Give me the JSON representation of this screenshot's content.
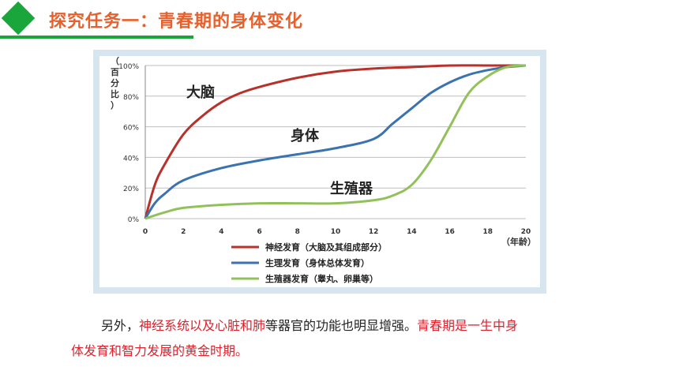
{
  "header": {
    "title": "探究任务一：青春期的身体变化"
  },
  "chart_data": {
    "type": "line",
    "ylabel": "（百分比）",
    "xlabel": "（年龄）",
    "xlim": [
      0,
      20
    ],
    "ylim": [
      0,
      100
    ],
    "x_ticks": [
      "0",
      "2",
      "4",
      "6",
      "8",
      "10",
      "12",
      "14",
      "16",
      "18",
      "20"
    ],
    "y_ticks": [
      "0%",
      "20%",
      "40%",
      "60%",
      "80%",
      "100%"
    ],
    "grid": true,
    "legend_position": "bottom-center",
    "series": [
      {
        "name": "神经发育（大脑及其组成部分）",
        "label": "大脑",
        "color": "#b8312b",
        "x": [
          0,
          0.5,
          1,
          2,
          3,
          4,
          5,
          6,
          8,
          10,
          12,
          14,
          16,
          18,
          20
        ],
        "y": [
          0,
          22,
          35,
          55,
          67,
          76,
          82,
          86,
          92,
          96,
          98,
          99,
          100,
          100,
          100
        ]
      },
      {
        "name": "生理发育（身体总体发育）",
        "label": "身体",
        "color": "#3b72b0",
        "x": [
          0,
          0.5,
          1,
          2,
          4,
          6,
          8,
          10,
          12,
          13,
          14,
          15,
          16,
          17,
          18,
          19,
          20
        ],
        "y": [
          0,
          10,
          16,
          25,
          33,
          38,
          42,
          46,
          52,
          62,
          72,
          82,
          89,
          94,
          97,
          99,
          100
        ]
      },
      {
        "name": "生殖器发育（睾丸、卵巢等）",
        "label": "生殖器",
        "color": "#92c15a",
        "x": [
          0,
          1,
          2,
          4,
          6,
          8,
          10,
          12,
          13,
          14,
          15,
          16,
          17,
          18,
          19,
          20
        ],
        "y": [
          0,
          4,
          7,
          9,
          10,
          10,
          10,
          12,
          15,
          22,
          38,
          60,
          82,
          93,
          99,
          100
        ]
      }
    ]
  },
  "paragraph": {
    "l1_a": "另外，",
    "l1_b": "神经系统以及心脏和肺",
    "l1_c": "等器官的功能也明显增强。",
    "l1_d": "青春期是一生中身",
    "l2": "体发育和智力发展的黄金时期。"
  }
}
